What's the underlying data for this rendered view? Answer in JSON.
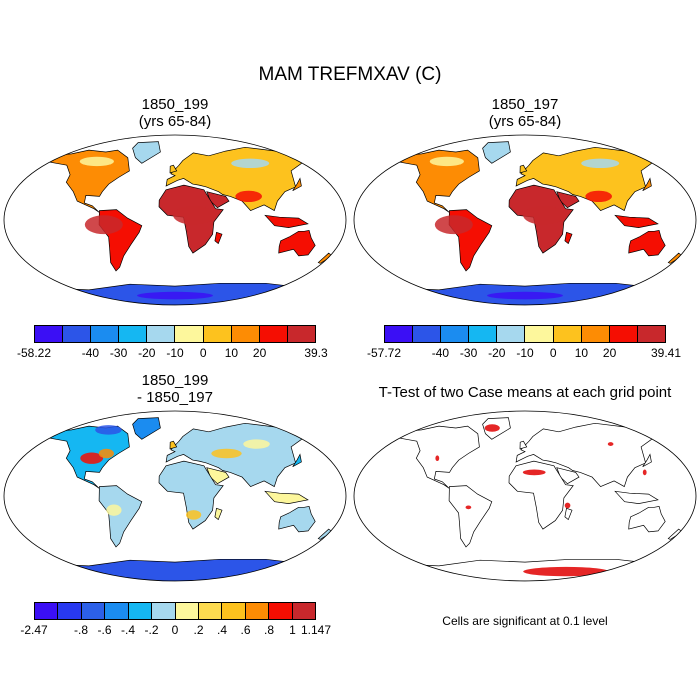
{
  "figure_title": "MAM TREFMXAV (C)",
  "panels": [
    {
      "id": "a",
      "title_line1": "1850_199",
      "title_line2": "(yrs 65-84)",
      "kind": "abs"
    },
    {
      "id": "b",
      "title_line1": "1850_197",
      "title_line2": "(yrs 65-84)",
      "kind": "abs"
    },
    {
      "id": "c",
      "title_line1": "1850_199",
      "title_line2": "- 1850_197",
      "kind": "diff"
    },
    {
      "id": "d",
      "title_line1": "T-Test of two Case means at each grid point",
      "title_line2": "",
      "kind": "ttest"
    }
  ],
  "colorbars": [
    {
      "id": "cb1",
      "colors": [
        "#3b0ff5",
        "#2c55e8",
        "#1b8cf0",
        "#15b7f2",
        "#a6d8ee",
        "#fdf79c",
        "#fdc21e",
        "#fd8c04",
        "#f50e02",
        "#c8282c"
      ],
      "labels": [
        "-58.22",
        "-40",
        "-30",
        "-20",
        "-10",
        "0",
        "10",
        "20",
        "39.3"
      ]
    },
    {
      "id": "cb2",
      "colors": [
        "#3b0ff5",
        "#2c55e8",
        "#1b8cf0",
        "#15b7f2",
        "#a6d8ee",
        "#fdf79c",
        "#fdc21e",
        "#fd8c04",
        "#f50e02",
        "#c8282c"
      ],
      "labels": [
        "-57.72",
        "-40",
        "-30",
        "-20",
        "-10",
        "0",
        "10",
        "20",
        "39.41"
      ]
    },
    {
      "id": "cb3",
      "colors": [
        "#3b0ff5",
        "#2839f0",
        "#2c60e8",
        "#1b8cf0",
        "#15b7f2",
        "#a6d8ee",
        "#fdf79c",
        "#fddb50",
        "#fdc21e",
        "#fd8c04",
        "#f50e02",
        "#c8282c"
      ],
      "labels": [
        "-2.47",
        "-.8",
        "-.6",
        "-.4",
        "-.2",
        "0",
        ".2",
        ".4",
        ".6",
        ".8",
        "1",
        "1.147"
      ]
    }
  ],
  "significance_note": "Cells are significant at 0.1 level"
}
